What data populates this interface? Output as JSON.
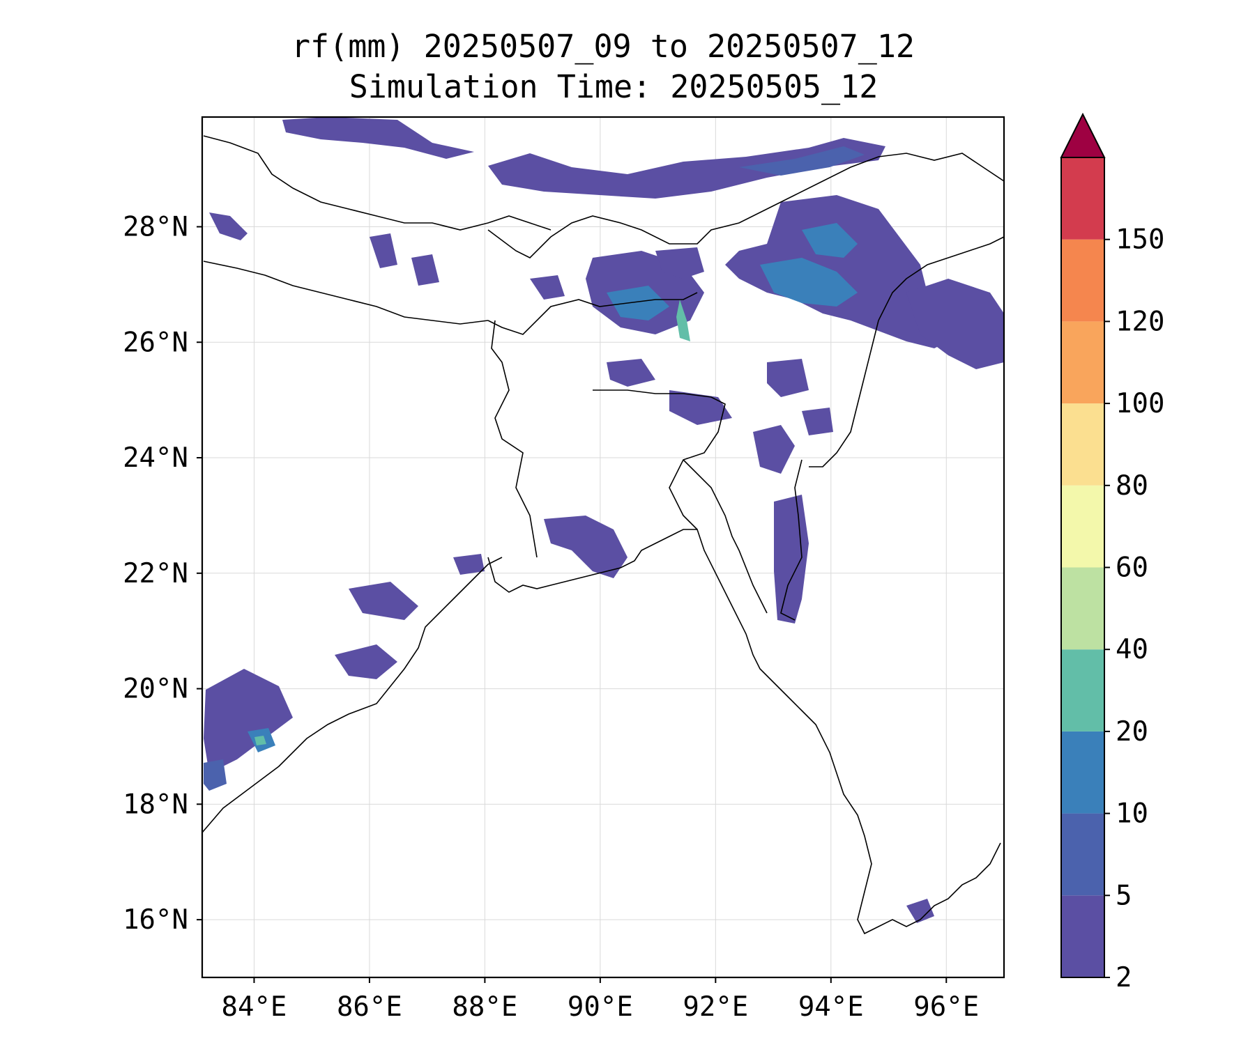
{
  "title": {
    "line1": "rf(mm) 20250507_09 to 20250507_12",
    "line2": "Simulation Time: 20250505_12"
  },
  "map": {
    "lon_range": [
      83.1,
      97.0
    ],
    "lat_range": [
      15.0,
      29.9
    ],
    "x_ticks": [
      {
        "value": 84,
        "label": "84°E"
      },
      {
        "value": 86,
        "label": "86°E"
      },
      {
        "value": 88,
        "label": "88°E"
      },
      {
        "value": 90,
        "label": "90°E"
      },
      {
        "value": 92,
        "label": "92°E"
      },
      {
        "value": 94,
        "label": "94°E"
      },
      {
        "value": 96,
        "label": "96°E"
      }
    ],
    "y_ticks": [
      {
        "value": 16,
        "label": "16°N"
      },
      {
        "value": 18,
        "label": "18°N"
      },
      {
        "value": 20,
        "label": "20°N"
      },
      {
        "value": 22,
        "label": "22°N"
      },
      {
        "value": 24,
        "label": "24°N"
      },
      {
        "value": 26,
        "label": "26°N"
      },
      {
        "value": 28,
        "label": "28°N"
      }
    ],
    "gridlines": true
  },
  "colorbar": {
    "levels": [
      "2",
      "5",
      "10",
      "20",
      "40",
      "60",
      "80",
      "100",
      "120",
      "150"
    ],
    "colors": [
      "#5b4fa3",
      "#4b62ad",
      "#3a80ba",
      "#62bea8",
      "#bde1a2",
      "#f3f8ab",
      "#fbdf90",
      "#f9a55c",
      "#f5864e",
      "#d33c4e"
    ],
    "extend_color": "#9e0142",
    "extend": "max"
  },
  "colors": {
    "light": "#5b4fa3",
    "medium": "#3a80ba",
    "heavy": "#62bea8"
  }
}
